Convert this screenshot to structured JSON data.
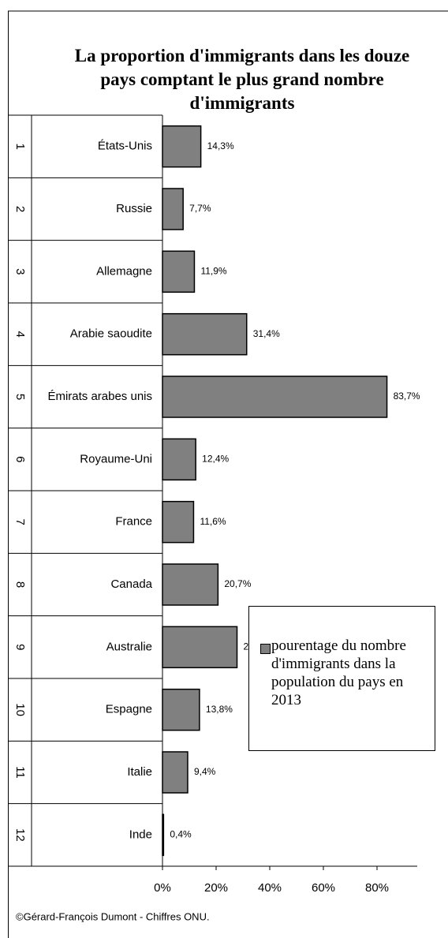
{
  "chart_data": {
    "type": "bar",
    "orientation": "horizontal",
    "title": "La proportion d'immigrants dans les douze pays comptant le plus grand nombre d'immigrants",
    "ranks": [
      1,
      2,
      3,
      4,
      5,
      6,
      7,
      8,
      9,
      10,
      11,
      12
    ],
    "categories": [
      "États-Unis",
      "Russie",
      "Allemagne",
      "Arabie saoudite",
      "Émirats arabes unis",
      "Royaume-Uni",
      "France",
      "Canada",
      "Australie",
      "Espagne",
      "Italie",
      "Inde"
    ],
    "series": [
      {
        "name": "pourentage du nombre d'immigrants dans la population du pays en 2013",
        "color": "#808080",
        "values": [
          14.3,
          7.7,
          11.9,
          31.4,
          83.7,
          12.4,
          11.6,
          20.7,
          27.8,
          13.8,
          9.4,
          0.4
        ],
        "value_labels": [
          "14,3%",
          "7,7%",
          "11,9%",
          "31,4%",
          "83,7%",
          "12,4%",
          "11,6%",
          "20,7%",
          "27,8%",
          "13,8%",
          "9,4%",
          "0,4%"
        ]
      }
    ],
    "xlim": [
      0,
      95
    ],
    "xticks": [
      {
        "value": 0,
        "label": "0%"
      },
      {
        "value": 20,
        "label": "20%"
      },
      {
        "value": 40,
        "label": "40%"
      },
      {
        "value": 60,
        "label": "60%"
      },
      {
        "value": 80,
        "label": "80%"
      }
    ],
    "source": "©Gérard-François Dumont - Chiffres ONU."
  }
}
